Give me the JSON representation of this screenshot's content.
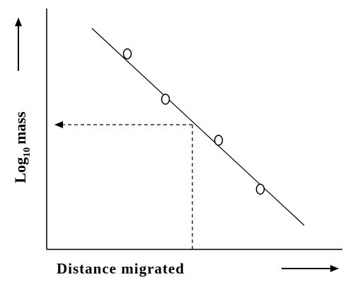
{
  "x_axis": {
    "label": "Distance migrated"
  },
  "y_axis": {
    "label": [
      "Log",
      "10",
      "mass"
    ]
  }
}
